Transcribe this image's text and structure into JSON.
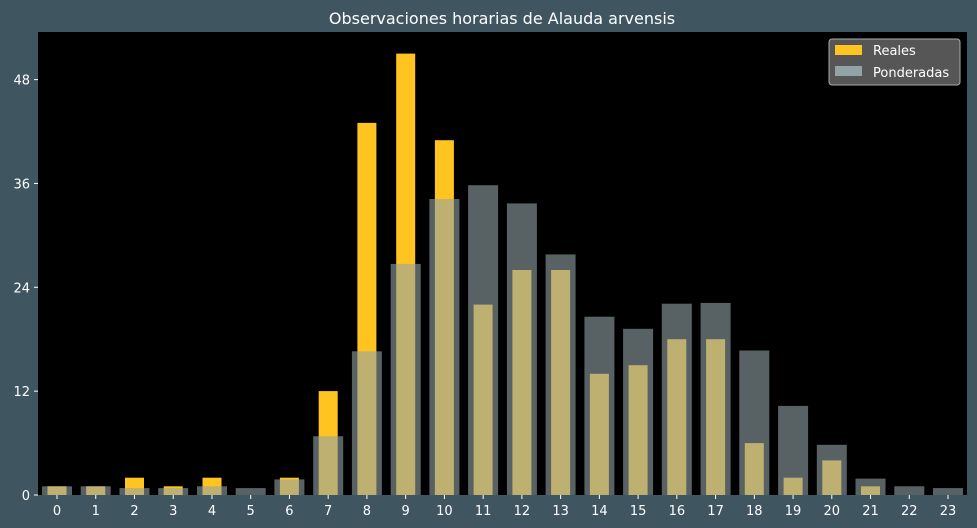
{
  "chart_data": {
    "type": "bar",
    "title": "Observaciones horarias de Alauda arvensis",
    "xlabel": "",
    "ylabel": "",
    "categories": [
      "0",
      "1",
      "2",
      "3",
      "4",
      "5",
      "6",
      "7",
      "8",
      "9",
      "10",
      "11",
      "12",
      "13",
      "14",
      "15",
      "16",
      "17",
      "18",
      "19",
      "20",
      "21",
      "22",
      "23"
    ],
    "series": [
      {
        "name": "Reales",
        "color": "#ffc41f",
        "values": [
          1,
          1,
          2,
          1,
          2,
          0,
          2,
          12,
          43,
          51,
          41,
          22,
          26,
          26,
          14,
          15,
          18,
          18,
          6,
          2,
          4,
          1,
          0,
          0
        ]
      },
      {
        "name": "Ponderadas",
        "color": "#93a4a6",
        "values": [
          1,
          1,
          0.8,
          0.8,
          1,
          0.8,
          1.8,
          6.8,
          16.6,
          26.7,
          34.2,
          35.8,
          33.7,
          27.8,
          20.6,
          19.2,
          22.1,
          22.2,
          16.7,
          10.3,
          5.8,
          1.9,
          1,
          0.8
        ]
      }
    ],
    "ylim": [
      0,
      53.5
    ],
    "yticks": [
      0,
      12,
      24,
      36,
      48
    ],
    "grid": false,
    "legend": "top-right",
    "plot_background": "#000000",
    "figure_background": "#3f5560"
  }
}
